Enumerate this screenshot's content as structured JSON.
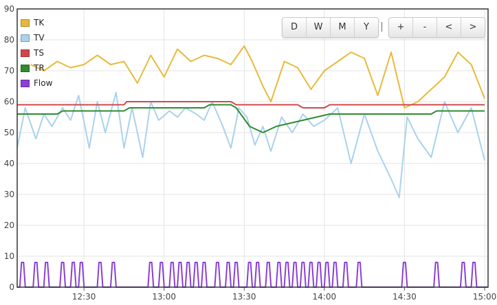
{
  "range_buttons": [
    "D",
    "W",
    "M",
    "Y"
  ],
  "nav_buttons": [
    "+",
    "-",
    "<",
    ">"
  ],
  "chart_data": {
    "type": "line",
    "ylim": [
      0,
      90
    ],
    "yticks": [
      0,
      10,
      20,
      30,
      40,
      50,
      60,
      70,
      80,
      90
    ],
    "xlim": [
      "12:05",
      "15:00"
    ],
    "xticks": [
      "12:30",
      "13:00",
      "13:30",
      "14:00",
      "14:30",
      "15:00"
    ],
    "grid": true,
    "legend_position": "top-left",
    "series": [
      {
        "name": "TK",
        "color": "#e8b93a",
        "width": 2,
        "x": [
          "12:10",
          "12:15",
          "12:20",
          "12:25",
          "12:30",
          "12:35",
          "12:40",
          "12:45",
          "12:50",
          "12:55",
          "13:00",
          "13:05",
          "13:10",
          "13:15",
          "13:20",
          "13:25",
          "13:30",
          "13:33",
          "13:37",
          "13:40",
          "13:45",
          "13:50",
          "13:55",
          "14:00",
          "14:05",
          "14:10",
          "14:15",
          "14:20",
          "14:25",
          "14:30",
          "14:35",
          "14:40",
          "14:45",
          "14:50",
          "14:55",
          "15:00"
        ],
        "y": [
          72,
          70,
          73,
          71,
          72,
          75,
          72,
          73,
          66,
          75,
          68,
          77,
          73,
          75,
          74,
          72,
          78,
          73,
          65,
          60,
          73,
          71,
          64,
          70,
          73,
          76,
          74,
          62,
          76,
          58,
          60,
          64,
          68,
          76,
          72,
          61
        ]
      },
      {
        "name": "TV",
        "color": "#a9d2ec",
        "width": 2,
        "x": [
          "12:05",
          "12:08",
          "12:12",
          "12:15",
          "12:18",
          "12:22",
          "12:25",
          "12:28",
          "12:32",
          "12:35",
          "12:38",
          "12:42",
          "12:45",
          "12:48",
          "12:52",
          "12:55",
          "12:58",
          "13:02",
          "13:05",
          "13:08",
          "13:12",
          "13:15",
          "13:18",
          "13:22",
          "13:25",
          "13:28",
          "13:31",
          "13:34",
          "13:37",
          "13:40",
          "13:44",
          "13:48",
          "13:52",
          "13:56",
          "14:00",
          "14:05",
          "14:10",
          "14:15",
          "14:20",
          "14:25",
          "14:28",
          "14:31",
          "14:35",
          "14:40",
          "14:45",
          "14:50",
          "14:55",
          "15:00"
        ],
        "y": [
          45,
          58,
          48,
          56,
          52,
          58,
          54,
          62,
          45,
          60,
          50,
          63,
          45,
          58,
          42,
          60,
          54,
          57,
          55,
          58,
          56,
          54,
          60,
          52,
          45,
          58,
          55,
          46,
          52,
          44,
          55,
          50,
          56,
          52,
          54,
          58,
          40,
          56,
          44,
          35,
          29,
          55,
          48,
          42,
          60,
          50,
          58,
          41
        ]
      },
      {
        "name": "TS",
        "color": "#d0474a",
        "width": 2,
        "x": [
          "12:05",
          "12:45",
          "12:46",
          "13:25",
          "13:27",
          "13:30",
          "13:50",
          "13:52",
          "14:00",
          "14:02",
          "15:00"
        ],
        "y": [
          59,
          59,
          60,
          60,
          59,
          59,
          59,
          58,
          58,
          59,
          59
        ]
      },
      {
        "name": "TR",
        "color": "#2e8b2e",
        "width": 2,
        "x": [
          "12:05",
          "12:20",
          "12:22",
          "12:45",
          "12:47",
          "13:15",
          "13:17",
          "13:25",
          "13:27",
          "13:32",
          "13:37",
          "13:42",
          "13:47",
          "13:52",
          "13:57",
          "14:02",
          "14:40",
          "14:42",
          "15:00"
        ],
        "y": [
          56,
          56,
          57,
          57,
          58,
          58,
          59,
          59,
          58,
          52,
          50,
          52,
          53,
          54,
          55,
          56,
          56,
          57,
          57
        ]
      },
      {
        "name": "Flow",
        "color": "#8a3fd6",
        "width": 2,
        "type": "pulse",
        "on_value": 8,
        "off_value": 0,
        "x": [
          "12:07",
          "12:12",
          "12:16",
          "12:22",
          "12:26",
          "12:29",
          "12:36",
          "12:41",
          "12:55",
          "12:59",
          "13:03",
          "13:06",
          "13:09",
          "13:12",
          "13:15",
          "13:20",
          "13:24",
          "13:27",
          "13:32",
          "13:35",
          "13:39",
          "13:43",
          "13:46",
          "13:49",
          "13:52",
          "13:55",
          "13:58",
          "14:01",
          "14:04",
          "14:08",
          "14:13",
          "14:30",
          "14:42",
          "14:52",
          "14:56"
        ]
      }
    ]
  }
}
